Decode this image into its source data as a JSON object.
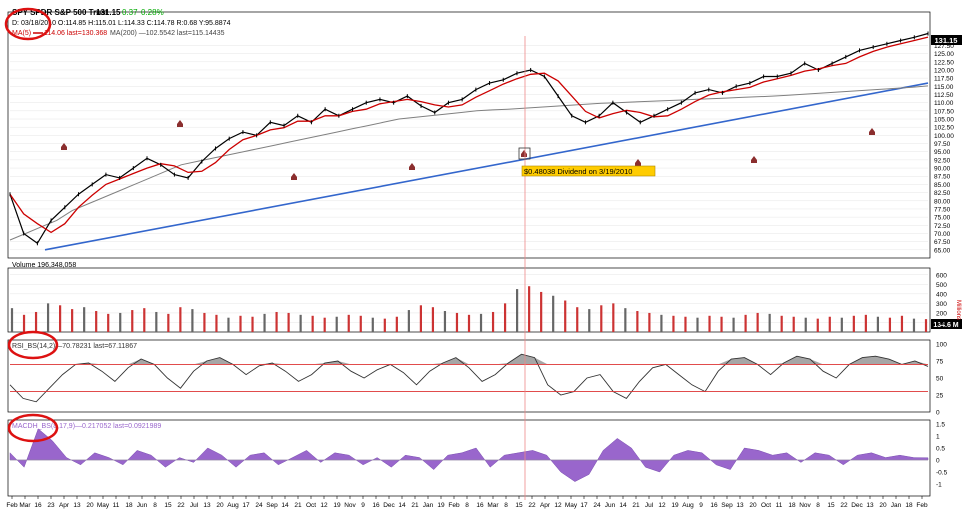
{
  "header": {
    "symbol": "SPY SPDR S&P 500 Trust",
    "last": "131.15",
    "change": "0.37",
    "change_pct": "0.28%",
    "ohlc": "D: 03/18/2010  O:114.85 H:115.01 L:114.33 C:114.78  R:0.68  Y:95.8874",
    "ma5_label": "MA(5)",
    "ma5_value": "114.06 last=130.368",
    "ma200": "MA(200) —102.5542 last=115.14435",
    "last_badge": "131.15"
  },
  "colors": {
    "price": "#000000",
    "ma5": "#cc0000",
    "ma200": "#808080",
    "trendline": "#3366cc",
    "rsi_fill": "#808080",
    "macd_fill": "#9966cc",
    "volume_up": "#cc3333",
    "volume_down": "#666666",
    "annotation_circle": "#dd1111",
    "dividend_bg": "#ffcc00",
    "grid": "#e6e6e6"
  },
  "dividend_note": "$0.48038 Dividend on 3/19/2010",
  "volume_panel": {
    "label": "Volume 196,348,058",
    "last_badge": "134.6 M",
    "unit": "Millions"
  },
  "rsi_panel": {
    "label": "RSI_BS(14,2)",
    "value": "—70.78231 last=67.11867"
  },
  "macd_panel": {
    "label": "MACDH_BS(8,17,9)",
    "value": "—0.217052 last=0.0921989"
  },
  "chart_data": [
    {
      "type": "line",
      "panel": "price",
      "ylim": [
        62.5,
        131.0
      ],
      "y_ticks": [
        "127.50",
        "125.00",
        "122.50",
        "120.00",
        "117.50",
        "115.00",
        "112.50",
        "110.00",
        "107.50",
        "105.00",
        "102.50",
        "100.00",
        "97.50",
        "95.00",
        "92.50",
        "90.00",
        "87.50",
        "85.00",
        "82.50",
        "80.00",
        "77.50",
        "75.00",
        "72.50",
        "70.00",
        "67.50",
        "65.00"
      ],
      "x_labels": [
        "Feb",
        "Mar",
        "16",
        "23",
        "Apr",
        "13",
        "20",
        "May",
        "11",
        "18",
        "Jun",
        "8",
        "15",
        "22",
        "Jul",
        "13",
        "20",
        "Aug",
        "17",
        "24",
        "Sep",
        "14",
        "21",
        "Oct",
        "12",
        "19",
        "Nov",
        "9",
        "16",
        "Dec",
        "14",
        "21",
        "Jan",
        "19",
        "Feb",
        "8",
        "16",
        "Mar",
        "8",
        "15",
        "22",
        "Apr",
        "12",
        "May",
        "17",
        "24",
        "Jun",
        "14",
        "21",
        "Jul",
        "12",
        "19",
        "Aug",
        "9",
        "16",
        "Sep",
        "13",
        "20",
        "Oct",
        "11",
        "18",
        "Nov",
        "8",
        "15",
        "22",
        "Dec",
        "13",
        "20",
        "Jan",
        "18",
        "Feb"
      ],
      "series": [
        {
          "values": [
            82,
            70,
            67,
            74,
            78,
            82,
            85,
            88,
            87,
            90,
            93,
            91,
            88,
            87,
            92,
            96,
            99,
            101,
            100,
            104,
            103,
            106,
            104,
            108,
            106,
            108,
            110,
            111,
            110,
            112,
            109,
            107,
            110,
            111,
            114,
            116,
            117,
            119,
            120,
            118,
            112,
            106,
            104,
            106,
            110,
            107,
            104,
            106,
            108,
            110,
            113,
            114,
            113,
            115,
            116,
            118,
            118,
            119,
            122,
            120,
            122,
            124,
            126,
            127,
            128,
            129,
            130,
            131.15
          ]
        },
        {
          "values": [
            68,
            70,
            72,
            74,
            77,
            79,
            81,
            83,
            85,
            87,
            89,
            91,
            92,
            93,
            94,
            95,
            96,
            97,
            98,
            99,
            100,
            101,
            102,
            103,
            104,
            105,
            105.5,
            106,
            106.5,
            107,
            107.5,
            107.8,
            108,
            108.3,
            108.6,
            108.9,
            109.2,
            109.5,
            109.8,
            110,
            110.2,
            110.4,
            110.6,
            110.8,
            111,
            111.2,
            111.4,
            111.6,
            111.8,
            112,
            112.3,
            112.6,
            112.9,
            113.2,
            113.5,
            113.8,
            114.1,
            114.4,
            114.7,
            115.14
          ]
        }
      ]
    },
    {
      "type": "bar",
      "panel": "volume",
      "ylabel": "Millions",
      "ylim": [
        0,
        650
      ],
      "y_ticks": [
        "600",
        "500",
        "400",
        "300",
        "200",
        "100"
      ],
      "values": [
        250,
        180,
        210,
        300,
        280,
        240,
        260,
        220,
        190,
        200,
        230,
        250,
        210,
        190,
        260,
        240,
        200,
        180,
        150,
        170,
        160,
        190,
        210,
        200,
        180,
        170,
        150,
        160,
        180,
        170,
        150,
        140,
        160,
        230,
        280,
        260,
        220,
        200,
        180,
        190,
        210,
        300,
        450,
        480,
        420,
        380,
        330,
        260,
        240,
        280,
        300,
        250,
        220,
        200,
        180,
        170,
        160,
        150,
        170,
        160,
        150,
        180,
        200,
        190,
        170,
        160,
        150,
        140,
        160,
        150,
        170,
        180,
        160,
        150,
        170,
        140,
        135
      ]
    },
    {
      "type": "line",
      "panel": "rsi",
      "ylim": [
        0,
        100
      ],
      "y_ticks": [
        "100",
        "75",
        "50",
        "25",
        "0"
      ],
      "values": [
        40,
        20,
        15,
        35,
        55,
        70,
        72,
        60,
        45,
        65,
        78,
        70,
        50,
        35,
        60,
        75,
        80,
        70,
        55,
        68,
        72,
        60,
        45,
        55,
        72,
        75,
        60,
        50,
        62,
        70,
        58,
        40,
        60,
        72,
        80,
        65,
        45,
        55,
        72,
        85,
        80,
        40,
        25,
        30,
        50,
        55,
        30,
        20,
        45,
        65,
        70,
        55,
        40,
        30,
        60,
        78,
        80,
        70,
        55,
        72,
        82,
        78,
        60,
        50,
        70,
        80,
        82,
        78,
        70,
        75,
        67
      ]
    },
    {
      "type": "area",
      "panel": "macd",
      "ylim": [
        -1.5,
        1.5
      ],
      "y_ticks": [
        "1.5",
        "1",
        "0.5",
        "0",
        "-0.5",
        "-1"
      ],
      "values": [
        0.3,
        -0.3,
        1.3,
        0.8,
        0.1,
        -0.2,
        0.3,
        0.1,
        -0.2,
        0.4,
        0.2,
        -0.3,
        0.1,
        -0.1,
        0.5,
        0.2,
        -0.3,
        0.2,
        0.3,
        -0.2,
        0.1,
        0.4,
        -0.1,
        0.3,
        0.2,
        -0.2,
        0.1,
        -0.3,
        0.2,
        0.1,
        -0.4,
        0.2,
        0.3,
        0.5,
        -0.3,
        0.2,
        0.3,
        0.4,
        0.2,
        -0.5,
        -0.9,
        -0.6,
        0.4,
        0.9,
        0.5,
        -0.3,
        -0.5,
        0.2,
        0.4,
        0.3,
        -0.2,
        -0.4,
        0.5,
        0.4,
        0.2,
        0.3,
        -0.1,
        0.3,
        0.2,
        -0.2,
        0.2,
        0.3,
        0.1,
        0.2,
        0.1,
        0.09
      ]
    }
  ]
}
